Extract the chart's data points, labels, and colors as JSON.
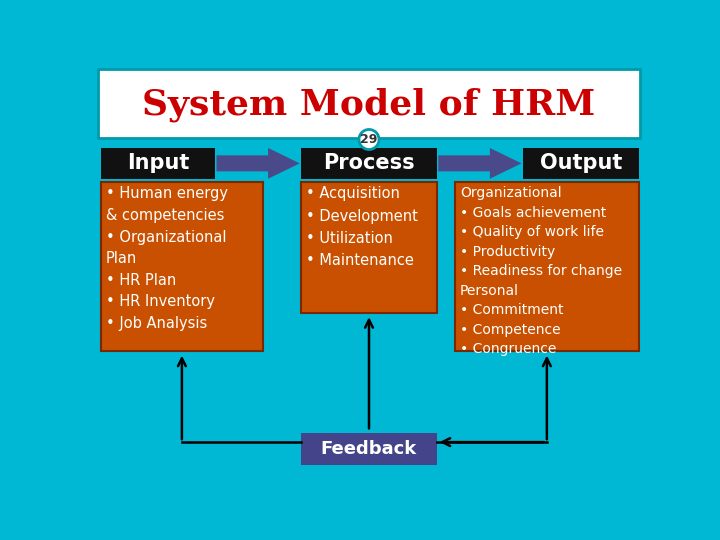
{
  "title": "System Model of HRM",
  "title_color": "#cc0000",
  "page_number": "29",
  "background_color": "#00b8d4",
  "header_bg": "#ffffff",
  "header_border": "#009aaa",
  "box_black": "#111111",
  "box_orange": "#c85000",
  "box_purple": "#44448a",
  "arrow_color": "#4a4a8a",
  "labels": [
    "Input",
    "Process",
    "Output"
  ],
  "feedback_label": "Feedback",
  "input_text": "• Human energy\n& competencies\n• Organizational\nPlan\n• HR Plan\n• HR Inventory\n• Job Analysis",
  "process_text": "• Acquisition\n• Development\n• Utilization\n• Maintenance",
  "output_text": "Organizational\n• Goals achievement\n• Quality of work life\n• Productivity\n• Readiness for change\nPersonal\n• Commitment\n• Competence\n• Congruence"
}
